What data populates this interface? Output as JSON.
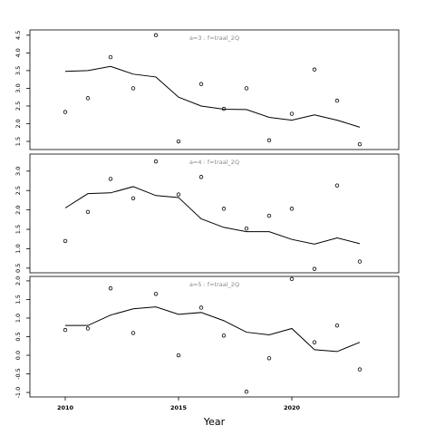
{
  "chart_data": [
    {
      "type": "line",
      "annotation": "a=3  :  f=traal_2Q",
      "x": [
        2010,
        2011,
        2012,
        2013,
        2014,
        2015,
        2016,
        2017,
        2018,
        2019,
        2020,
        2021,
        2022,
        2023
      ],
      "series": [
        {
          "style": "points",
          "color": "#000000",
          "values": [
            2.33,
            2.72,
            3.88,
            3.0,
            4.5,
            1.5,
            3.12,
            2.42,
            3.0,
            1.53,
            2.28,
            3.53,
            2.65,
            1.42
          ]
        },
        {
          "style": "line",
          "color": "#000000",
          "values": [
            3.48,
            3.5,
            3.62,
            3.4,
            3.32,
            2.75,
            2.5,
            2.41,
            2.4,
            2.18,
            2.1,
            2.25,
            2.1,
            1.9
          ]
        }
      ],
      "xlim": [
        2008.44,
        2024.72
      ],
      "ylim": [
        1.27,
        4.65
      ],
      "yticks": [
        {
          "value": 1.5,
          "label": "1.5"
        },
        {
          "value": 2,
          "label": "2.0"
        },
        {
          "value": 2.5,
          "label": "2.5"
        },
        {
          "value": 3,
          "label": "3.0"
        },
        {
          "value": 3.5,
          "label": "3.5"
        },
        {
          "value": 4,
          "label": "4.0"
        },
        {
          "value": 4.5,
          "label": "4.5"
        }
      ]
    },
    {
      "type": "line",
      "annotation": "a=4  :  f=traal_2Q",
      "x": [
        2010,
        2011,
        2012,
        2013,
        2014,
        2015,
        2016,
        2017,
        2018,
        2019,
        2020,
        2021,
        2022,
        2023
      ],
      "series": [
        {
          "style": "points",
          "color": "#000000",
          "values": [
            1.2,
            1.95,
            2.8,
            2.3,
            3.25,
            2.4,
            2.85,
            2.03,
            1.52,
            1.85,
            2.03,
            0.48,
            2.63,
            0.67
          ]
        },
        {
          "style": "line",
          "color": "#000000",
          "values": [
            2.05,
            2.42,
            2.44,
            2.6,
            2.37,
            2.32,
            1.77,
            1.55,
            1.44,
            1.44,
            1.24,
            1.12,
            1.28,
            1.13
          ]
        }
      ],
      "xlim": [
        2008.44,
        2024.72
      ],
      "ylim": [
        0.38,
        3.44
      ],
      "yticks": [
        {
          "value": 0.5,
          "label": "0.5"
        },
        {
          "value": 1,
          "label": "1.0"
        },
        {
          "value": 1.5,
          "label": "1.5"
        },
        {
          "value": 2,
          "label": "2.0"
        },
        {
          "value": 2.5,
          "label": "2.5"
        },
        {
          "value": 3,
          "label": "3.0"
        }
      ]
    },
    {
      "type": "line",
      "annotation": "a=5  :  f=traal_2Q",
      "x": [
        2010,
        2011,
        2012,
        2013,
        2014,
        2015,
        2016,
        2017,
        2018,
        2019,
        2020,
        2021,
        2022,
        2023
      ],
      "series": [
        {
          "style": "points",
          "color": "#000000",
          "values": [
            0.68,
            0.72,
            1.8,
            0.6,
            1.65,
            0.0,
            1.28,
            0.53,
            -0.98,
            -0.08,
            2.05,
            0.35,
            0.8,
            -0.38
          ]
        },
        {
          "style": "line",
          "color": "#000000",
          "values": [
            0.8,
            0.8,
            1.08,
            1.25,
            1.3,
            1.1,
            1.15,
            0.93,
            0.62,
            0.55,
            0.72,
            0.15,
            0.1,
            0.35
          ]
        }
      ],
      "xlim": [
        2008.44,
        2024.72
      ],
      "ylim": [
        -1.12,
        2.12
      ],
      "yticks": [
        {
          "value": -1,
          "label": "-1.0"
        },
        {
          "value": -0.5,
          "label": "-0.5"
        },
        {
          "value": 0,
          "label": "0.0"
        },
        {
          "value": 0.5,
          "label": "0.5"
        },
        {
          "value": 1,
          "label": "1.0"
        },
        {
          "value": 1.5,
          "label": "1.5"
        },
        {
          "value": 2,
          "label": "2.0"
        }
      ],
      "xticks": [
        2010,
        2015,
        2020
      ],
      "xlabel": "Year"
    }
  ]
}
